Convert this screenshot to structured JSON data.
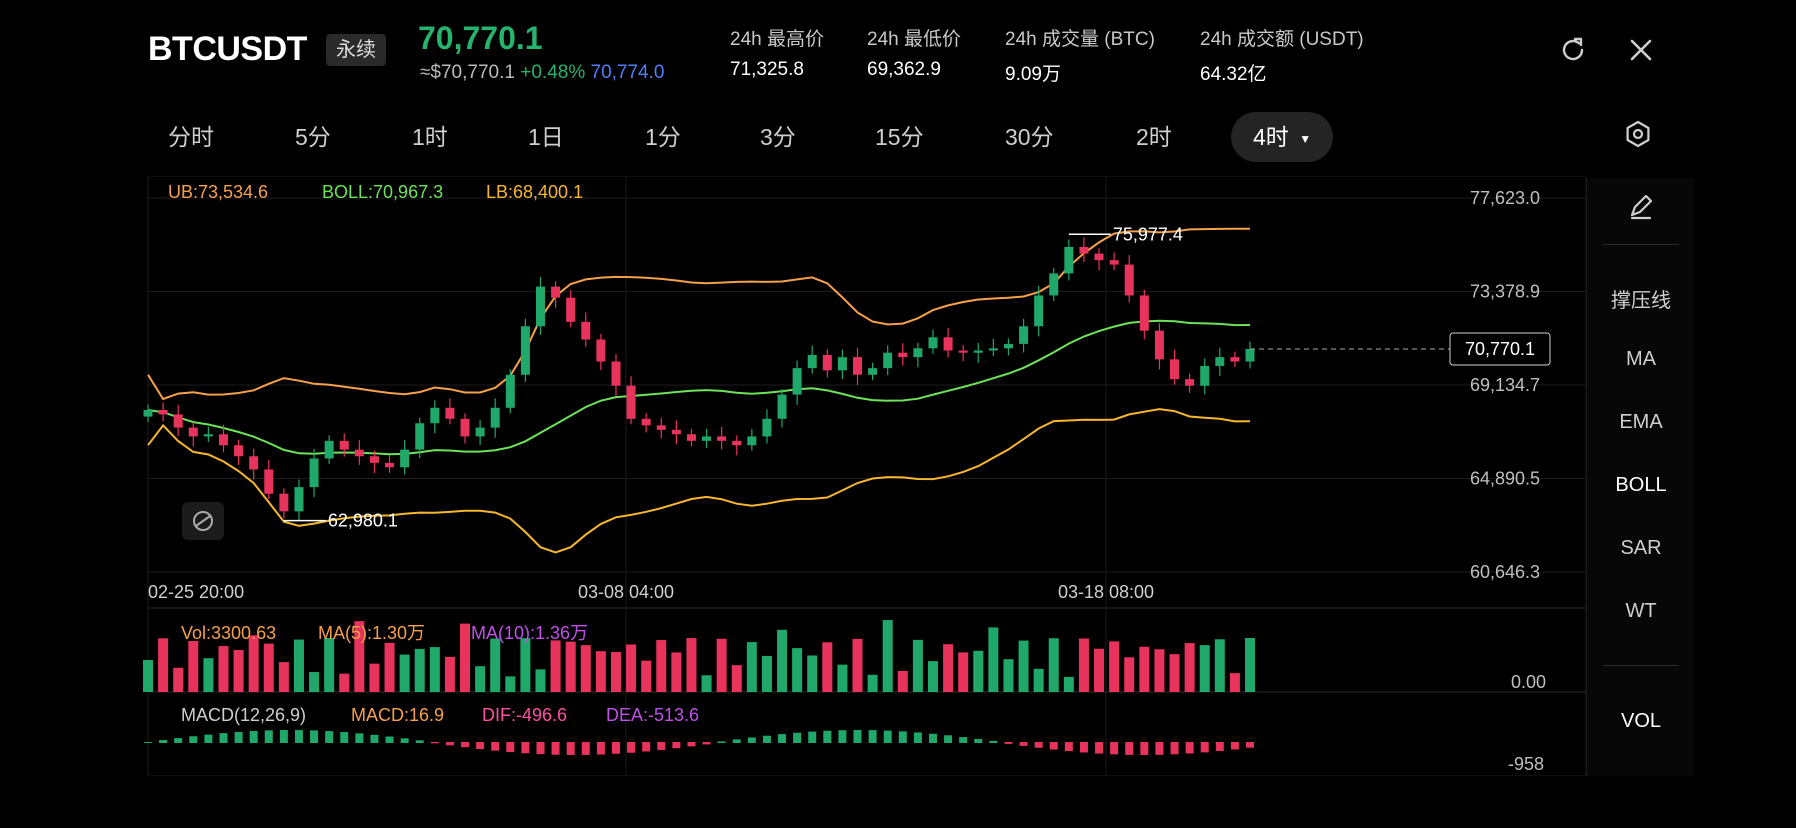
{
  "header": {
    "symbol": "BTCUSDT",
    "contract_badge": "永续",
    "last_price": "70,770.1",
    "usd_equiv": "≈$70,770.1",
    "change_pct": "+0.48%",
    "mark_price": "70,774.0",
    "stats": [
      {
        "label": "24h 最高价",
        "value": "71,325.8"
      },
      {
        "label": "24h 最低价",
        "value": "69,362.9"
      },
      {
        "label": "24h 成交量 (BTC)",
        "value": "9.09万"
      },
      {
        "label": "24h 成交额 (USDT)",
        "value": "64.32亿"
      }
    ],
    "refresh_icon": "refresh-icon",
    "close_icon": "close-icon"
  },
  "timeframes": {
    "items": [
      "分时",
      "5分",
      "1时",
      "1日",
      "1分",
      "3分",
      "15分",
      "30分",
      "2时",
      "4时"
    ],
    "active": "4时",
    "settings_icon": "hexagon-settings-icon"
  },
  "indicators_bar": {
    "boll_line": {
      "ub": "UB:73,534.6",
      "boll": "BOLL:70,967.3",
      "lb": "LB:68,400.1"
    },
    "vol_line": {
      "vol": "Vol:3300.63",
      "ma5": "MA(5):1.30万",
      "ma10": "MA(10):1.36万"
    },
    "macd_line": {
      "name": "MACD(12,26,9)",
      "macd": "MACD:16.9",
      "dif": "DIF:-496.6",
      "dea": "DEA:-513.6"
    }
  },
  "side_panel": {
    "draw_icon": "pencil-draw-icon",
    "items": [
      "撑压线",
      "MA",
      "EMA",
      "BOLL",
      "SAR",
      "WT"
    ],
    "selected": "BOLL",
    "bottom_item": "VOL"
  },
  "colors": {
    "up": "#1fa86a",
    "down": "#e8335c",
    "ub": "#f5a04a",
    "lb": "#f7b62f",
    "boll": "#6ee25a",
    "ma10": "#c050e8",
    "dea": "#c050e8",
    "dif": "#ff4fa2"
  },
  "chart_data": {
    "type": "candlestick",
    "timeframe": "4时",
    "y_ticks": [
      "77,623.0",
      "73,378.9",
      "69,134.7",
      "64,890.5",
      "60,646.3"
    ],
    "ylim": [
      60646.3,
      77623.0
    ],
    "x_ticks": [
      "02-25 20:00",
      "03-08 04:00",
      "03-18 08:00"
    ],
    "annotations": {
      "high_label": "75,977.4",
      "high_value": 75977.4,
      "low_label": "62,980.1",
      "low_value": 62980.1,
      "current_price_label": "70,770.1",
      "current_price_value": 70770.1
    },
    "volume_axis_label": "0.00",
    "macd_axis_label": "-958",
    "approx_path_close": [
      68000,
      67800,
      67200,
      66800,
      66900,
      66400,
      65900,
      65300,
      64200,
      63400,
      64500,
      65800,
      66600,
      66200,
      65900,
      65600,
      65400,
      66200,
      67400,
      68100,
      67600,
      66800,
      67200,
      68100,
      69600,
      71800,
      73600,
      73100,
      72000,
      71200,
      70200,
      69100,
      67600,
      67300,
      67100,
      66900,
      66600,
      66800,
      66600,
      66400,
      66800,
      67600,
      68700,
      69900,
      70500,
      69800,
      70400,
      69600,
      69900,
      70600,
      70400,
      70800,
      71300,
      70700,
      70600,
      70700,
      70800,
      71000,
      71800,
      73200,
      74200,
      75400,
      75100,
      74800,
      74600,
      73200,
      71600,
      70300,
      69400,
      69100,
      70000,
      70400,
      70200,
      70770.1
    ]
  }
}
